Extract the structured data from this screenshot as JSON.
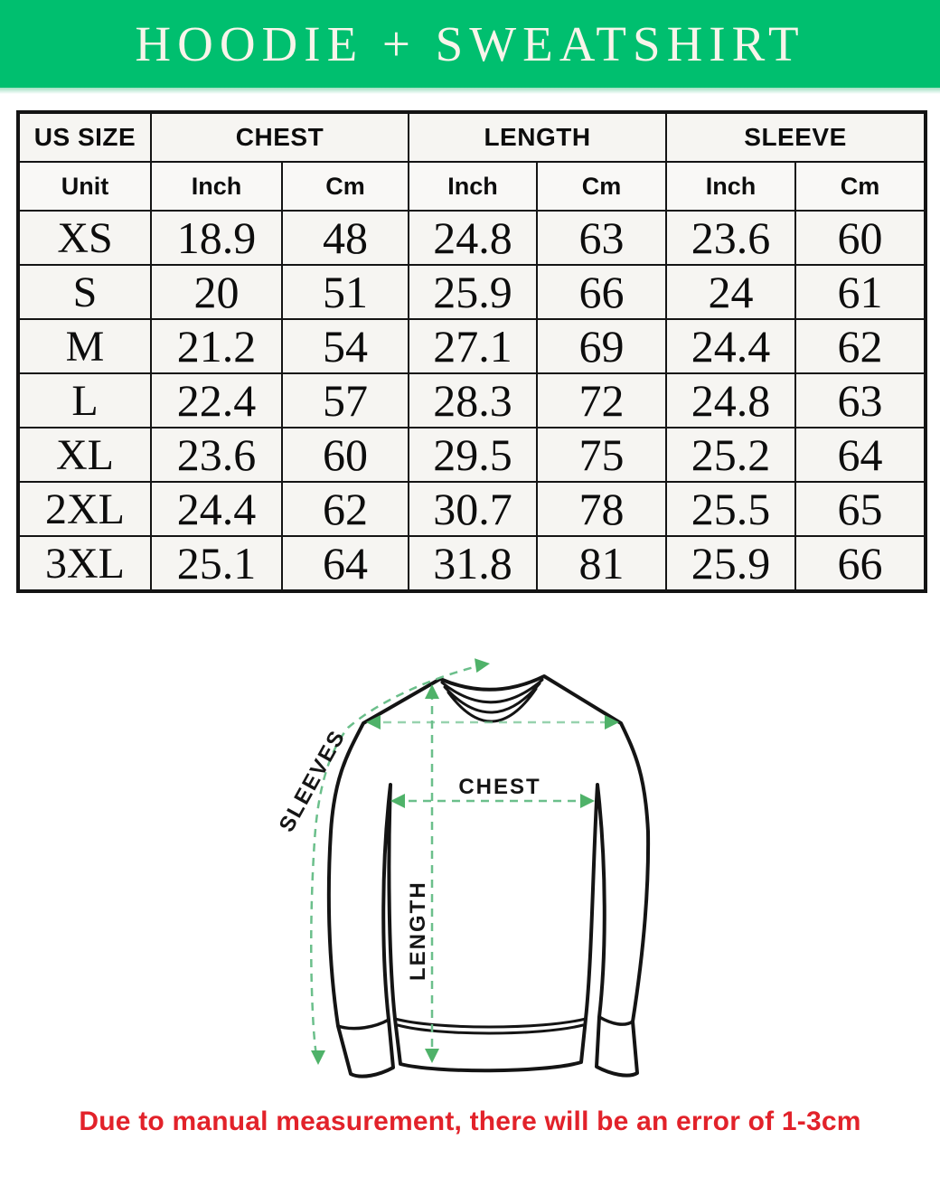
{
  "banner": {
    "title": "HOODIE + SWEATSHIRT",
    "bg_color": "#00bf6f",
    "text_color": "#f8f4ea"
  },
  "size_chart": {
    "header_groups": [
      {
        "label": "US SIZE",
        "colspan": 1
      },
      {
        "label": "CHEST",
        "colspan": 2
      },
      {
        "label": "LENGTH",
        "colspan": 2
      },
      {
        "label": "SLEEVE",
        "colspan": 2
      }
    ],
    "unit_row": [
      "Unit",
      "Inch",
      "Cm",
      "Inch",
      "Cm",
      "Inch",
      "Cm"
    ],
    "rows": [
      [
        "XS",
        "18.9",
        "48",
        "24.8",
        "63",
        "23.6",
        "60"
      ],
      [
        "S",
        "20",
        "51",
        "25.9",
        "66",
        "24",
        "61"
      ],
      [
        "M",
        "21.2",
        "54",
        "27.1",
        "69",
        "24.4",
        "62"
      ],
      [
        "L",
        "22.4",
        "57",
        "28.3",
        "72",
        "24.8",
        "63"
      ],
      [
        "XL",
        "23.6",
        "60",
        "29.5",
        "75",
        "25.2",
        "64"
      ],
      [
        "2XL",
        "24.4",
        "62",
        "30.7",
        "78",
        "25.5",
        "65"
      ],
      [
        "3XL",
        "25.1",
        "64",
        "31.8",
        "81",
        "25.9",
        "66"
      ]
    ]
  },
  "diagram": {
    "sleeves_label": "SLEEVES",
    "chest_label": "CHEST",
    "length_label": "LENGTH",
    "line_color": "#6bbf8b",
    "arrow_color": "#4fb269"
  },
  "footnote": {
    "text": "Due to manual measurement, there will be an error of 1-3cm",
    "color": "#e2222a"
  }
}
